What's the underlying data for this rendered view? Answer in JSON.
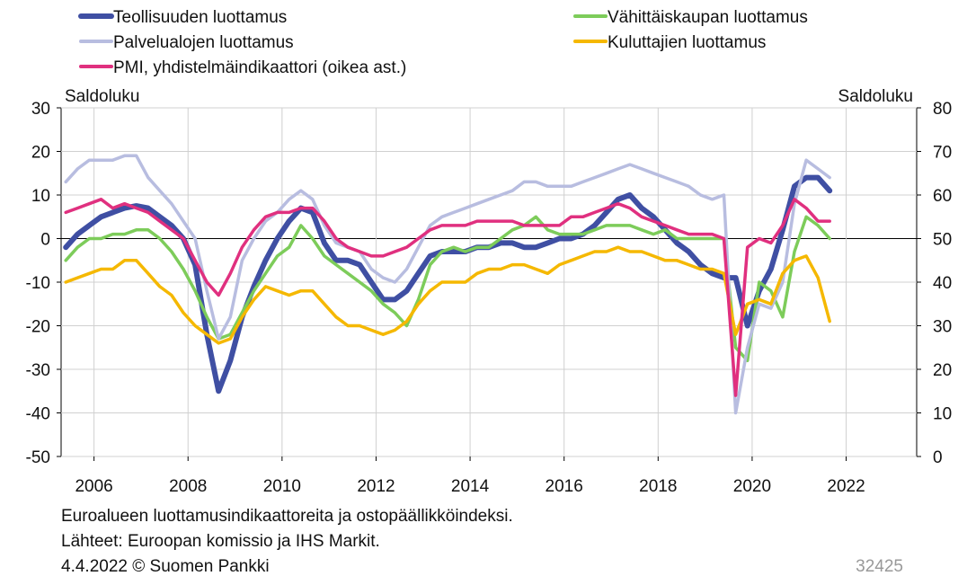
{
  "chart_data": {
    "type": "line",
    "y_label": "Saldoluku",
    "y2_label": "Saldoluku",
    "caption": "Euroalueen luottamusindikaattoreita ja ostopäällikköindeksi.",
    "source": "Lähteet: Euroopan komissio ja IHS Markit.",
    "date_credit": "4.4.2022 © Suomen Pankki",
    "chart_id": "32425",
    "xlim": [
      2005.3,
      2023.5
    ],
    "xticks": [
      2006,
      2008,
      2010,
      2012,
      2014,
      2016,
      2018,
      2020,
      2022
    ],
    "ylim": [
      -50,
      30
    ],
    "yticks": [
      -50,
      -40,
      -30,
      -20,
      -10,
      0,
      10,
      20,
      30
    ],
    "y2lim": [
      0,
      80
    ],
    "y2ticks": [
      0,
      10,
      20,
      30,
      40,
      50,
      60,
      70,
      80
    ],
    "grid": true,
    "x": [
      2005.4,
      2005.65,
      2005.9,
      2006.15,
      2006.4,
      2006.65,
      2006.9,
      2007.15,
      2007.4,
      2007.65,
      2007.9,
      2008.15,
      2008.4,
      2008.65,
      2008.9,
      2009.15,
      2009.4,
      2009.65,
      2009.9,
      2010.15,
      2010.4,
      2010.65,
      2010.9,
      2011.15,
      2011.4,
      2011.65,
      2011.9,
      2012.15,
      2012.4,
      2012.65,
      2012.9,
      2013.15,
      2013.4,
      2013.65,
      2013.9,
      2014.15,
      2014.4,
      2014.65,
      2014.9,
      2015.15,
      2015.4,
      2015.65,
      2015.9,
      2016.15,
      2016.4,
      2016.65,
      2016.9,
      2017.15,
      2017.4,
      2017.65,
      2017.9,
      2018.15,
      2018.4,
      2018.65,
      2018.9,
      2019.15,
      2019.4,
      2019.65,
      2019.9,
      2020.15,
      2020.4,
      2020.65,
      2020.9,
      2021.15,
      2021.4,
      2021.65
    ],
    "series": [
      {
        "name": "Teollisuuden luottamus",
        "color": "#3f4fa3",
        "values": [
          -2,
          1,
          3,
          5,
          6,
          7,
          7.5,
          7,
          5,
          3,
          0,
          -6,
          -22,
          -35,
          -28,
          -18,
          -11,
          -5,
          0,
          4,
          7,
          6,
          -1,
          -5,
          -5,
          -6,
          -10,
          -14,
          -14,
          -12,
          -8,
          -4,
          -3,
          -3,
          -3,
          -2,
          -2,
          -1,
          -1,
          -2,
          -2,
          -1,
          0,
          0,
          1,
          3,
          6,
          9,
          10,
          7,
          5,
          2,
          -1,
          -3,
          -6,
          -8,
          -9,
          -9,
          -20,
          -12,
          -7,
          2,
          12,
          14,
          14,
          11
        ]
      },
      {
        "name": "Vähittäiskaupan luottamus",
        "color": "#7dcc5a",
        "values": [
          -5,
          -2,
          0,
          0,
          1,
          1,
          2,
          2,
          0,
          -3,
          -7,
          -12,
          -18,
          -23,
          -22,
          -17,
          -12,
          -8,
          -4,
          -2,
          3,
          0,
          -4,
          -6,
          -8,
          -10,
          -12,
          -15,
          -17,
          -20,
          -14,
          -6,
          -3,
          -2,
          -3,
          -2,
          -2,
          0,
          2,
          3,
          5,
          2,
          1,
          1,
          1,
          2,
          3,
          3,
          3,
          2,
          1,
          2,
          0,
          0,
          0,
          0,
          0,
          -25,
          -28,
          -10,
          -12,
          -18,
          -3,
          5,
          3,
          0
        ]
      },
      {
        "name": "Palvelualojen luottamus",
        "color": "#b8bde0",
        "values": [
          13,
          16,
          18,
          18,
          18,
          19,
          19,
          14,
          11,
          8,
          4,
          0,
          -12,
          -23,
          -18,
          -5,
          0,
          4,
          6,
          9,
          11,
          9,
          3,
          -1,
          -2,
          -3,
          -7,
          -9,
          -10,
          -7,
          -2,
          3,
          5,
          6,
          7,
          8,
          9,
          10,
          11,
          13,
          13,
          12,
          12,
          12,
          13,
          14,
          15,
          16,
          17,
          16,
          15,
          14,
          13,
          12,
          10,
          9,
          10,
          -40,
          -25,
          -15,
          -16,
          -10,
          8,
          18,
          16,
          14
        ]
      },
      {
        "name": "Kuluttajien luottamus",
        "color": "#f5b800",
        "values": [
          -10,
          -9,
          -8,
          -7,
          -7,
          -5,
          -5,
          -8,
          -11,
          -13,
          -17,
          -20,
          -22,
          -24,
          -23,
          -18,
          -14,
          -11,
          -12,
          -13,
          -12,
          -12,
          -15,
          -18,
          -20,
          -20,
          -21,
          -22,
          -21,
          -19,
          -15,
          -12,
          -10,
          -10,
          -10,
          -8,
          -7,
          -7,
          -6,
          -6,
          -7,
          -8,
          -6,
          -5,
          -4,
          -3,
          -3,
          -2,
          -3,
          -3,
          -4,
          -5,
          -5,
          -6,
          -7,
          -7,
          -8,
          -22,
          -15,
          -14,
          -15,
          -8,
          -5,
          -4,
          -9,
          -19
        ]
      },
      {
        "name": "PMI, yhdistelmäindikaattori (oikea ast.)",
        "color": "#e0307f",
        "axis": "y2",
        "values": [
          56,
          57,
          58,
          59,
          57,
          58,
          57,
          56,
          54,
          52,
          50,
          45,
          40,
          37,
          42,
          48,
          52,
          55,
          56,
          56,
          57,
          57,
          54,
          50,
          48,
          47,
          46,
          46,
          47,
          48,
          50,
          52,
          53,
          53,
          53,
          54,
          54,
          54,
          54,
          53,
          53,
          53,
          53,
          55,
          55,
          56,
          57,
          58,
          57,
          55,
          54,
          53,
          52,
          51,
          51,
          51,
          50,
          14,
          48,
          50,
          49,
          53,
          59,
          57,
          54,
          54
        ]
      }
    ]
  }
}
